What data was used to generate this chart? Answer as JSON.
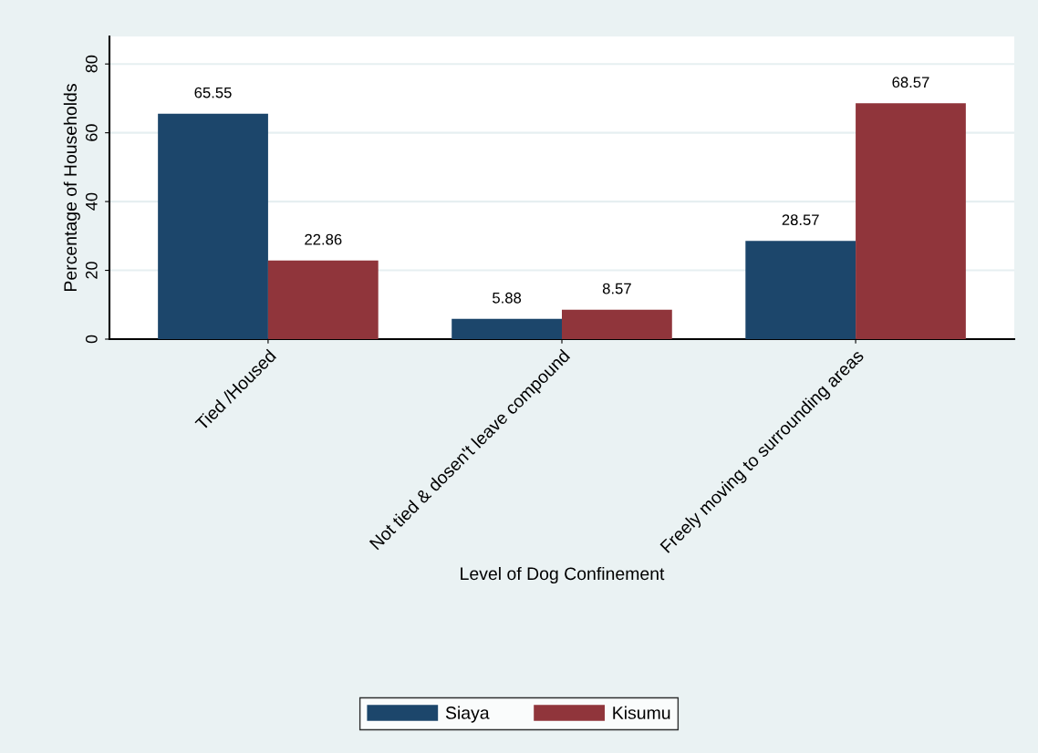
{
  "chart_data": {
    "type": "bar",
    "xlabel": "Level of Dog Confinement",
    "ylabel": "Percentage of Households",
    "categories": [
      "Tied /Housed",
      "Not tied & dosen't leave compound",
      "Freely moving to surrounding areas"
    ],
    "series": [
      {
        "name": "Siaya",
        "color": "#1c466b",
        "values": [
          65.55,
          5.88,
          28.57
        ]
      },
      {
        "name": "Kisumu",
        "color": "#90353b",
        "values": [
          22.86,
          8.57,
          68.57
        ]
      }
    ],
    "ylim": [
      0,
      88
    ],
    "yticks": [
      0,
      20,
      40,
      60,
      80
    ],
    "grid": "y",
    "legend": "bottom",
    "data_labels": true
  }
}
